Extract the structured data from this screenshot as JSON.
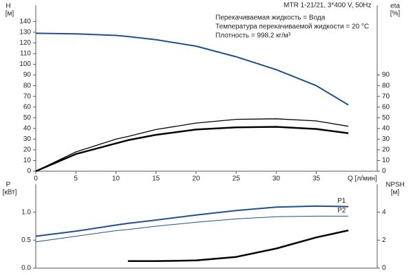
{
  "chart_data": [
    {
      "type": "line",
      "title": "MTR 1-21/21, 3*400 V, 50Hz",
      "annotations": [
        "Перекачиваемая жидкость = Вода",
        "Температура перекачиваемой жидкости = 20 °C",
        "Плотность = 998.2 кг/м³"
      ],
      "ylabel": "H",
      "yunit": "[м]",
      "y2label": "eta",
      "y2unit": "[%]",
      "xlabel": "Q [л/мин]",
      "x": [
        0,
        5,
        10,
        11.5,
        15,
        20,
        25,
        30,
        35,
        39
      ],
      "series": [
        {
          "color": "#1f4e8c",
          "values": [
            129,
            128.5,
            127,
            126,
            123,
            117,
            107,
            95,
            80,
            62
          ]
        },
        {
          "color": "#000000",
          "axis": "y2",
          "values": [
            0,
            18,
            30,
            32.5,
            39,
            45,
            48.5,
            49,
            47,
            42
          ]
        },
        {
          "color": "#000000",
          "axis": "y2",
          "values": [
            0,
            16,
            26,
            29,
            34,
            39,
            41,
            41.5,
            39.5,
            35.5
          ]
        }
      ],
      "xlim": [
        0,
        42.6
      ],
      "xticks": [
        0,
        5,
        10,
        15,
        20,
        25,
        30,
        35
      ],
      "ylim": [
        0,
        155
      ],
      "yticks": [
        0,
        10,
        20,
        30,
        40,
        50,
        60,
        70,
        80,
        90,
        100,
        110,
        120,
        130,
        140
      ],
      "y2lim": [
        0,
        155
      ],
      "y2ticks": [
        0,
        10,
        20,
        30,
        40,
        50,
        60,
        70,
        80,
        90
      ]
    },
    {
      "type": "line",
      "ylabel": "P",
      "yunit": "[кВт]",
      "y2label": "NPSH",
      "y2unit": "[м]",
      "x": [
        0,
        5,
        10,
        11.5,
        15,
        20,
        25,
        30,
        35,
        39
      ],
      "series": [
        {
          "name": "P1",
          "color": "#1f4e8c",
          "values": [
            0.57,
            0.66,
            0.77,
            0.8,
            0.86,
            0.95,
            1.03,
            1.09,
            1.11,
            1.1
          ]
        },
        {
          "name": "P2",
          "color": "#1f4e8c",
          "values": [
            0.47,
            0.57,
            0.67,
            0.69,
            0.75,
            0.82,
            0.88,
            0.92,
            0.93,
            0.93
          ]
        },
        {
          "color": "#000000",
          "axis": "y2",
          "values": [
            null,
            null,
            null,
            0.5,
            0.5,
            0.55,
            0.8,
            1.4,
            2.2,
            2.7
          ]
        }
      ],
      "xlim": [
        0,
        42.6
      ],
      "ylim": [
        0,
        1.5
      ],
      "yticks": [
        {
          "value": 0,
          "label": "0.0"
        },
        0.5,
        {
          "value": 1,
          "label": "1.0"
        }
      ],
      "y2lim": [
        0,
        6
      ],
      "y2ticks": [
        0,
        2,
        4
      ]
    }
  ]
}
